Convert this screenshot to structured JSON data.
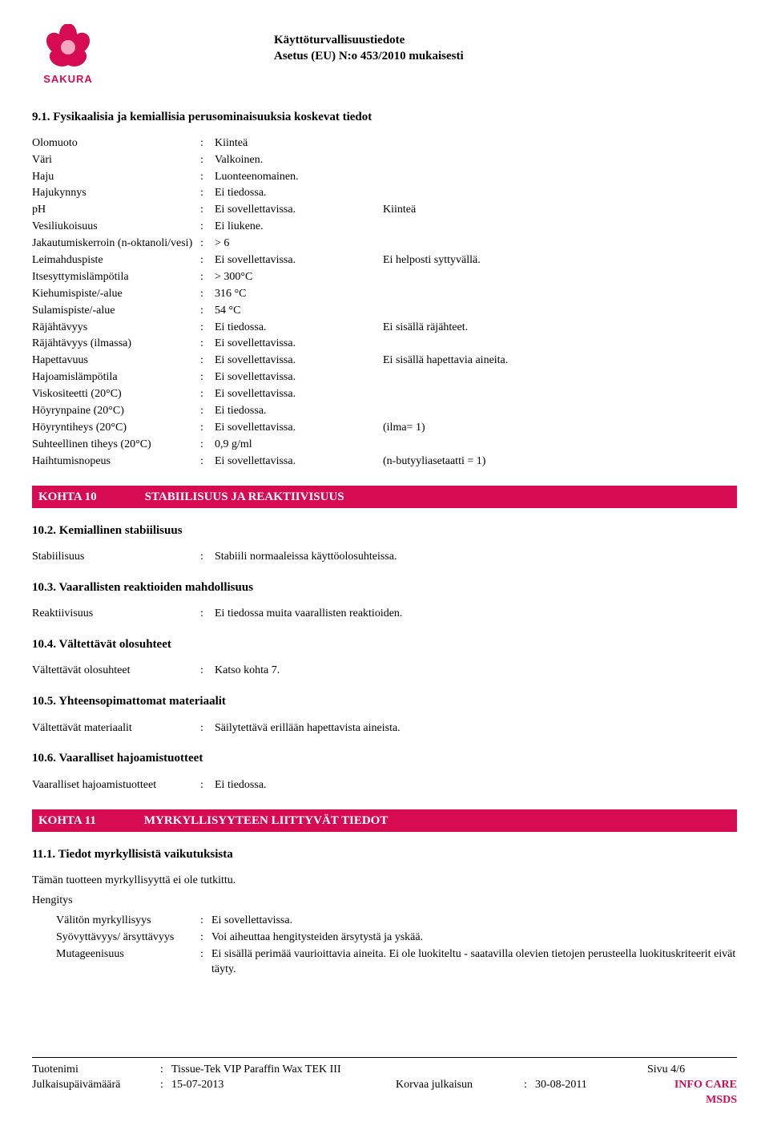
{
  "header": {
    "brand": "SAKURA",
    "title_line1": "Käyttöturvallisuustiedote",
    "title_line2": "Asetus (EU) N:o 453/2010 mukaisesti",
    "logo_color": "#d60b52",
    "logo_center": "#f5a6c0"
  },
  "section91": {
    "heading": "9.1. Fysikaalisia ja kemiallisia perusominaisuuksia koskevat tiedot",
    "rows": [
      {
        "label": "Olomuoto",
        "value": "Kiinteä",
        "extra": ""
      },
      {
        "label": "Väri",
        "value": "Valkoinen.",
        "extra": ""
      },
      {
        "label": "Haju",
        "value": "Luonteenomainen.",
        "extra": ""
      },
      {
        "label": "Hajukynnys",
        "value": "Ei tiedossa.",
        "extra": ""
      },
      {
        "label": "pH",
        "value": "Ei sovellettavissa.",
        "extra": "Kiinteä"
      },
      {
        "label": "Vesiliukoisuus",
        "value": "Ei liukene.",
        "extra": ""
      },
      {
        "label": "Jakautumiskerroin (n-oktanoli/vesi)",
        "value": "> 6",
        "extra": ""
      },
      {
        "label": "Leimahduspiste",
        "value": "Ei sovellettavissa.",
        "extra": "Ei helposti syttyvällä."
      },
      {
        "label": "Itsesyttymislämpötila",
        "value": "> 300°C",
        "extra": ""
      },
      {
        "label": "Kiehumispiste/-alue",
        "value": "316 °C",
        "extra": ""
      },
      {
        "label": "Sulamispiste/-alue",
        "value": "54 °C",
        "extra": ""
      },
      {
        "label": "Räjähtävyys",
        "value": "Ei tiedossa.",
        "extra": "Ei sisällä räjähteet."
      },
      {
        "label": "Räjähtävyys (ilmassa)",
        "value": "Ei sovellettavissa.",
        "extra": ""
      },
      {
        "label": "Hapettavuus",
        "value": "Ei sovellettavissa.",
        "extra": "Ei sisällä hapettavia aineita."
      },
      {
        "label": "Hajoamislämpötila",
        "value": "Ei sovellettavissa.",
        "extra": ""
      },
      {
        "label": "Viskositeetti (20°C)",
        "value": "Ei sovellettavissa.",
        "extra": ""
      },
      {
        "label": "Höyrynpaine (20°C)",
        "value": "Ei tiedossa.",
        "extra": ""
      },
      {
        "label": "Höyryntiheys (20°C)",
        "value": "Ei sovellettavissa.",
        "extra": "(ilma= 1)"
      },
      {
        "label": "Suhteellinen tiheys (20°C)",
        "value": "0,9 g/ml",
        "extra": ""
      },
      {
        "label": "Haihtumisnopeus",
        "value": "Ei sovellettavissa.",
        "extra": "(n-butyyliasetaatti = 1)"
      }
    ]
  },
  "kohta10": {
    "label": "KOHTA 10",
    "title": "STABIILISUUS JA REAKTIIVISUUS",
    "s102": {
      "heading": "10.2. Kemiallinen stabiilisuus",
      "label": "Stabiilisuus",
      "value": "Stabiili normaaleissa käyttöolosuhteissa."
    },
    "s103": {
      "heading": "10.3. Vaarallisten reaktioiden mahdollisuus",
      "label": "Reaktiivisuus",
      "value": "Ei tiedossa muita vaarallisten reaktioiden."
    },
    "s104": {
      "heading": "10.4. Vältettävät olosuhteet",
      "label": "Vältettävät olosuhteet",
      "value": "Katso kohta 7."
    },
    "s105": {
      "heading": "10.5. Yhteensopimattomat materiaalit",
      "label": "Vältettävät materiaalit",
      "value": "Säilytettävä erillään hapettavista aineista."
    },
    "s106": {
      "heading": "10.6. Vaaralliset hajoamistuotteet",
      "label": "Vaaralliset hajoamistuotteet",
      "value": "Ei tiedossa."
    }
  },
  "kohta11": {
    "label": "KOHTA 11",
    "title": "MYRKYLLISYYTEEN LIITTYVÄT TIEDOT",
    "s111": {
      "heading": "11.1. Tiedot myrkyllisistä vaikutuksista",
      "intro": "Tämän tuotteen myrkyllisyyttä ei ole tutkittu.",
      "hengitys_label": "Hengitys",
      "rows": [
        {
          "label": "Välitön myrkyllisyys",
          "value": "Ei sovellettavissa."
        },
        {
          "label": "Syövyttävyys/ ärsyttävyys",
          "value": "Voi aiheuttaa hengitysteiden ärsytystä ja yskää."
        },
        {
          "label": "Mutageenisuus",
          "value": "Ei sisällä perimää vaurioittavia aineita. Ei ole luokiteltu - saatavilla olevien tietojen perusteella luokituskriteerit eivät täyty."
        }
      ]
    }
  },
  "footer": {
    "product_label": "Tuotenimi",
    "product_value": "Tissue-Tek VIP Paraffin Wax TEK III",
    "date_label": "Julkaisupäivämäärä",
    "date_value": "15-07-2013",
    "replaces_label": "Korvaa julkaisun",
    "replaces_value": "30-08-2011",
    "page_label": "Sivu 4/6",
    "infocare": "INFO CARE MSDS"
  }
}
